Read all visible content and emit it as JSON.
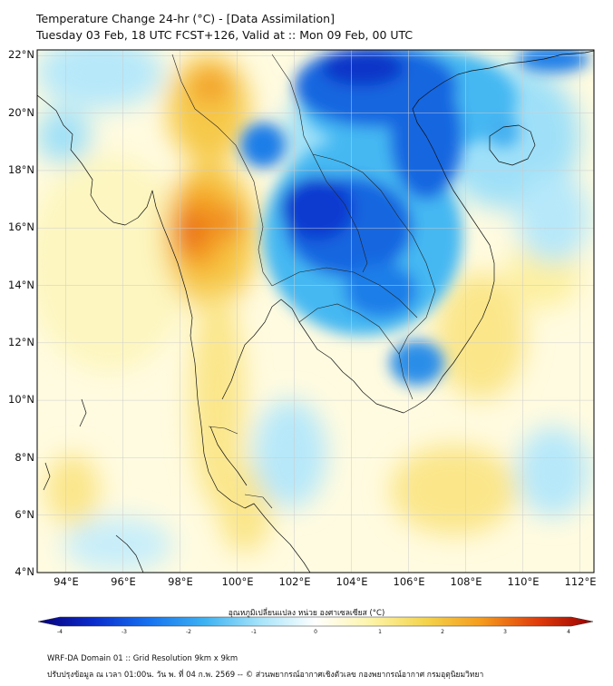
{
  "header": {
    "title": "Temperature Change 24-hr (°C) - [Data Assimilation]",
    "subtitle": "Tuesday 03 Feb, 18 UTC FCST+126, Valid at :: Mon 09 Feb, 00 UTC"
  },
  "axes": {
    "lat_labels": [
      "22°N",
      "20°N",
      "18°N",
      "16°N",
      "14°N",
      "12°N",
      "10°N",
      "8°N",
      "6°N",
      "4°N"
    ],
    "lon_labels": [
      "94°E",
      "96°E",
      "98°E",
      "100°E",
      "102°E",
      "104°E",
      "106°E",
      "108°E",
      "110°E",
      "112°E"
    ],
    "lat_range": [
      4,
      22.2
    ],
    "lon_range": [
      93.0,
      112.5
    ]
  },
  "colorbar": {
    "title": "อุณหภูมิเปลี่ยนแปลง หน่วย องศาเซลเซียส (°C)",
    "ticks": [
      "-4",
      "-3",
      "-2",
      "-1",
      "0",
      "1",
      "2",
      "3",
      "4"
    ],
    "min": -4,
    "max": 4,
    "colors": [
      "#08007a",
      "#0a2ccc",
      "#1672f0",
      "#3cb2f2",
      "#a6e4fa",
      "#ffffff",
      "#fdf4a8",
      "#f4d34a",
      "#f59a1c",
      "#e03c0c",
      "#990000"
    ]
  },
  "footer": {
    "line1": "WRF-DA Domain 01 :: Grid Resolution 9km x 9km",
    "line2": "ปรับปรุงข้อมูล ณ เวลา 01:00น. วัน พ. ที่ 04 ก.พ. 2569 -- © ส่วนพยากรณ์อากาศเชิงตัวเลข กองพยากรณ์อากาศ กรมอุตุนิยมวิทยา"
  }
}
